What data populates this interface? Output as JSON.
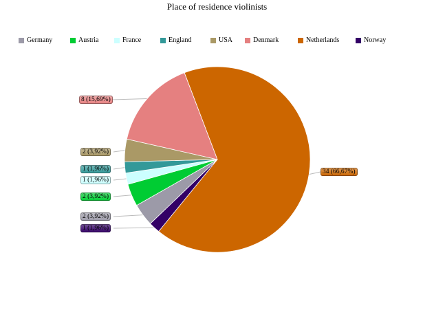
{
  "chart_data": {
    "type": "pie",
    "title": "Place of residence violinists",
    "legend_position": "top",
    "categories": [
      "Germany",
      "Austria",
      "France",
      "England",
      "USA",
      "Denmark",
      "Netherlands",
      "Norway"
    ],
    "values": [
      2,
      2,
      1,
      1,
      2,
      8,
      34,
      1
    ],
    "colors": [
      "#9c9aa8",
      "#00cc33",
      "#ccffff",
      "#339999",
      "#aa9966",
      "#e58080",
      "#cc6600",
      "#330066"
    ],
    "data_labels": [
      "2 (3,92%)",
      "2 (3,92%)",
      "1 (1,96%)",
      "1 (1,96%)",
      "2 (3,92%)",
      "8 (15,69%)",
      "34 (66,67%)",
      "1 (1,96%)"
    ],
    "clockwise_order": [
      "Netherlands",
      "Norway",
      "Germany",
      "Austria",
      "France",
      "England",
      "USA",
      "Denmark"
    ]
  }
}
